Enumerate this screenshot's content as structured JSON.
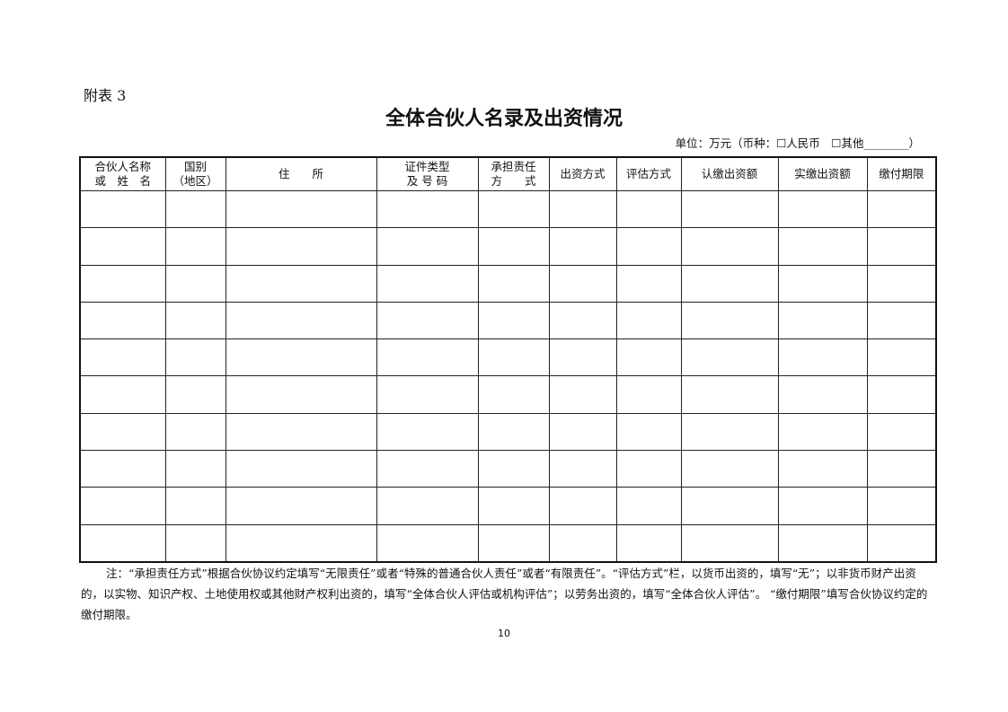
{
  "appendix_label": "附表 3",
  "title": "全体合伙人名录及出资情况",
  "unit_line": "单位：万元（币种：☐人民币　☐其他________）",
  "table": {
    "headers": [
      "合伙人名称\n或　姓　名",
      "国别\n（地区）",
      "住　　所",
      "证件类型\n及 号 码",
      "承担责任\n方　　式",
      "出资方式",
      "评估方式",
      "认缴出资额",
      "实缴出资额",
      "缴付期限"
    ],
    "rows": [
      [
        "",
        "",
        "",
        "",
        "",
        "",
        "",
        "",
        "",
        ""
      ],
      [
        "",
        "",
        "",
        "",
        "",
        "",
        "",
        "",
        "",
        ""
      ],
      [
        "",
        "",
        "",
        "",
        "",
        "",
        "",
        "",
        "",
        ""
      ],
      [
        "",
        "",
        "",
        "",
        "",
        "",
        "",
        "",
        "",
        ""
      ],
      [
        "",
        "",
        "",
        "",
        "",
        "",
        "",
        "",
        "",
        ""
      ],
      [
        "",
        "",
        "",
        "",
        "",
        "",
        "",
        "",
        "",
        ""
      ],
      [
        "",
        "",
        "",
        "",
        "",
        "",
        "",
        "",
        "",
        ""
      ],
      [
        "",
        "",
        "",
        "",
        "",
        "",
        "",
        "",
        "",
        ""
      ],
      [
        "",
        "",
        "",
        "",
        "",
        "",
        "",
        "",
        "",
        ""
      ],
      [
        "",
        "",
        "",
        "",
        "",
        "",
        "",
        "",
        "",
        ""
      ]
    ]
  },
  "note": "注：“承担责任方式”根据合伙协议约定填写“无限责任”或者“特殊的普通合伙人责任”或者“有限责任”。“评估方式”栏，以货币出资的，填写“无”；以非货币财产出资的，以实物、知识产权、土地使用权或其他财产权利出资的，填写“全体合伙人评估或机构评估”；以劳务出资的，填写“全体合伙人评估”。 “缴付期限”填写合伙协议约定的缴付期限。",
  "page_number": "10"
}
